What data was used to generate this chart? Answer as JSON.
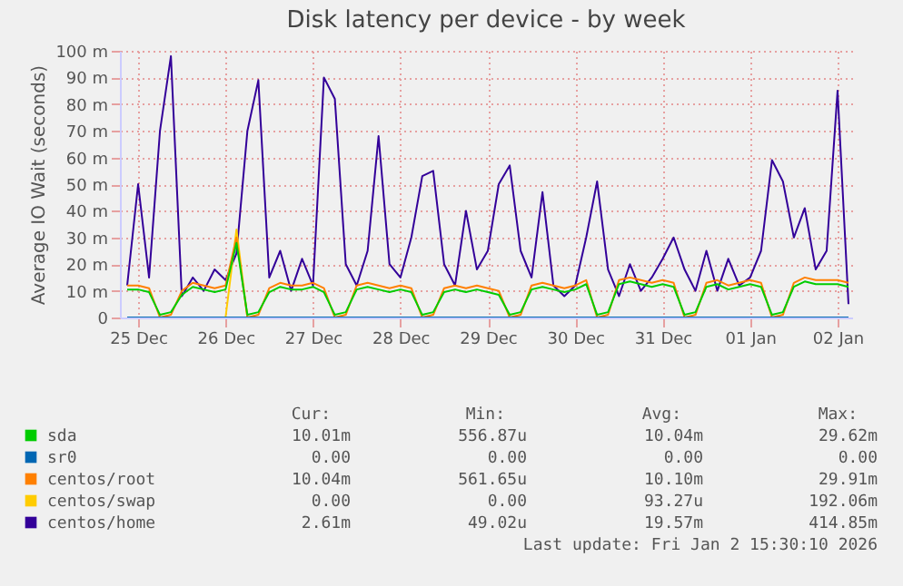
{
  "chart_data": {
    "type": "line",
    "title": "Disk latency per device - by week",
    "ylabel": "Average IO Wait (seconds)",
    "x": [
      "2025-12-25T09:00",
      "2025-12-25T12:00",
      "2025-12-25T15:00",
      "2025-12-25T18:00",
      "2025-12-25T21:00",
      "2025-12-26T00:00",
      "2025-12-26T03:00",
      "2025-12-26T06:00",
      "2025-12-26T09:00",
      "2025-12-26T12:00",
      "2025-12-26T15:00",
      "2025-12-26T18:00",
      "2025-12-26T21:00",
      "2025-12-27T00:00",
      "2025-12-27T03:00",
      "2025-12-27T06:00",
      "2025-12-27T09:00",
      "2025-12-27T12:00",
      "2025-12-27T15:00",
      "2025-12-27T18:00",
      "2025-12-27T21:00",
      "2025-12-28T00:00",
      "2025-12-28T03:00",
      "2025-12-28T06:00",
      "2025-12-28T09:00",
      "2025-12-28T12:00",
      "2025-12-28T15:00",
      "2025-12-28T18:00",
      "2025-12-28T21:00",
      "2025-12-29T00:00",
      "2025-12-29T03:00",
      "2025-12-29T06:00",
      "2025-12-29T09:00",
      "2025-12-29T12:00",
      "2025-12-29T15:00",
      "2025-12-29T18:00",
      "2025-12-29T21:00",
      "2025-12-30T00:00",
      "2025-12-30T03:00",
      "2025-12-30T06:00",
      "2025-12-30T09:00",
      "2025-12-30T12:00",
      "2025-12-30T15:00",
      "2025-12-30T18:00",
      "2025-12-30T21:00",
      "2025-12-31T00:00",
      "2025-12-31T03:00",
      "2025-12-31T06:00",
      "2025-12-31T09:00",
      "2025-12-31T12:00",
      "2025-12-31T15:00",
      "2025-12-31T18:00",
      "2025-12-31T21:00",
      "2026-01-01T00:00",
      "2026-01-01T03:00",
      "2026-01-01T06:00",
      "2026-01-01T09:00",
      "2026-01-01T12:00",
      "2026-01-01T15:00",
      "2026-01-01T18:00",
      "2026-01-01T21:00",
      "2026-01-02T00:00",
      "2026-01-02T03:00",
      "2026-01-02T06:00",
      "2026-01-02T09:00",
      "2026-01-02T12:00",
      "2026-01-02T15:00"
    ],
    "xlim": [
      "2025-12-25T07:00",
      "2026-01-02T16:00"
    ],
    "xticks": [
      {
        "value": "2025-12-25T12:00",
        "label": "25 Dec"
      },
      {
        "value": "2025-12-26T12:00",
        "label": "26 Dec"
      },
      {
        "value": "2025-12-27T12:00",
        "label": "27 Dec"
      },
      {
        "value": "2025-12-28T12:00",
        "label": "28 Dec"
      },
      {
        "value": "2025-12-29T12:00",
        "label": "29 Dec"
      },
      {
        "value": "2025-12-30T12:00",
        "label": "30 Dec"
      },
      {
        "value": "2025-12-31T12:00",
        "label": "31 Dec"
      },
      {
        "value": "2026-01-01T12:00",
        "label": "01 Jan"
      },
      {
        "value": "2026-01-02T12:00",
        "label": "02 Jan"
      }
    ],
    "ylim": [
      0,
      100
    ],
    "yticks": [
      0,
      {
        "value": 10,
        "label": "10 m"
      },
      {
        "value": 20,
        "label": "20 m"
      },
      {
        "value": 30,
        "label": "30 m"
      },
      {
        "value": 40,
        "label": "40 m"
      },
      {
        "value": 50,
        "label": "50 m"
      },
      {
        "value": 60,
        "label": "60 m"
      },
      {
        "value": 70,
        "label": "70 m"
      },
      {
        "value": 80,
        "label": "80 m"
      },
      {
        "value": 90,
        "label": "90 m"
      },
      {
        "value": 100,
        "label": "100 m"
      }
    ],
    "grid": true,
    "legend": "bottom",
    "series": [
      {
        "name": "sda",
        "color": "#00cc00",
        "values": [
          10.5,
          10.5,
          9.5,
          1,
          2,
          8.5,
          11.5,
          10.5,
          9.5,
          10.5,
          28,
          1,
          2,
          9.5,
          11.5,
          10.5,
          10.5,
          11.5,
          9.5,
          1,
          2,
          10.5,
          11.5,
          10.5,
          9.5,
          10.5,
          9.5,
          1,
          2,
          9.5,
          10.5,
          9.5,
          10.5,
          9.5,
          8.5,
          1,
          2,
          10.5,
          11.5,
          10.5,
          9.5,
          10.5,
          12.5,
          1,
          2,
          12.5,
          13.5,
          12.5,
          11.5,
          12.5,
          11.5,
          1,
          2,
          11.5,
          12.5,
          10.5,
          11.5,
          12.5,
          11.5,
          1,
          2,
          11.5,
          13.5,
          12.5,
          12.5,
          12.5,
          11.5
        ]
      },
      {
        "name": "sr0",
        "color": "#0066b3",
        "values": [
          0,
          0,
          0,
          0,
          0,
          0,
          0,
          0,
          0,
          0,
          0,
          0,
          0,
          0,
          0,
          0,
          0,
          0,
          0,
          0,
          0,
          0,
          0,
          0,
          0,
          0,
          0,
          0,
          0,
          0,
          0,
          0,
          0,
          0,
          0,
          0,
          0,
          0,
          0,
          0,
          0,
          0,
          0,
          0,
          0,
          0,
          0,
          0,
          0,
          0,
          0,
          0,
          0,
          0,
          0,
          0,
          0,
          0,
          0,
          0,
          0,
          0,
          0,
          0,
          0,
          0,
          0
        ]
      },
      {
        "name": "centos/root",
        "color": "#ff8000",
        "values": [
          12,
          12,
          11,
          0,
          1,
          10,
          13,
          12,
          11,
          12,
          30,
          0,
          1,
          11,
          13,
          12,
          12,
          13,
          11,
          0,
          1,
          12,
          13,
          12,
          11,
          12,
          11,
          0,
          1,
          11,
          12,
          11,
          12,
          11,
          10,
          0,
          1,
          12,
          13,
          12,
          11,
          12,
          14,
          0,
          1,
          14,
          15,
          14,
          13,
          14,
          13,
          0,
          1,
          13,
          14,
          12,
          13,
          14,
          13,
          0,
          1,
          13,
          15,
          14,
          14,
          14,
          13
        ]
      },
      {
        "name": "centos/swap",
        "color": "#ffcc00",
        "values": [
          null,
          null,
          null,
          null,
          null,
          null,
          null,
          null,
          null,
          0,
          33,
          0,
          null,
          null,
          null,
          null,
          null,
          null,
          null,
          null,
          null,
          null,
          null,
          null,
          null,
          null,
          null,
          null,
          null,
          null,
          null,
          null,
          null,
          null,
          null,
          null,
          null,
          null,
          null,
          null,
          null,
          null,
          null,
          null,
          null,
          null,
          null,
          null,
          null,
          null,
          null,
          null,
          null,
          null,
          null,
          null,
          null,
          null,
          null,
          null,
          null,
          null,
          null,
          null,
          null,
          null,
          null
        ]
      },
      {
        "name": "centos/home",
        "color": "#330099",
        "values": [
          12,
          50,
          15,
          70,
          98,
          8,
          15,
          10,
          18,
          14,
          24,
          70,
          89,
          15,
          25,
          10,
          22,
          12,
          90,
          82,
          20,
          12,
          25,
          68,
          20,
          15,
          30,
          53,
          55,
          20,
          12,
          40,
          18,
          25,
          50,
          57,
          25,
          15,
          47,
          12,
          8,
          12,
          30,
          51,
          18,
          8,
          20,
          10,
          15,
          22,
          30,
          18,
          10,
          25,
          10,
          22,
          12,
          15,
          25,
          59,
          51,
          30,
          41,
          18,
          25,
          85,
          5
        ]
      }
    ],
    "annotations": [
      "Cur:",
      "Min:",
      "Avg:",
      "Max:",
      "10.01m",
      "556.87u",
      "10.04m",
      "29.62m",
      "0.00",
      "0.00",
      "0.00",
      "0.00",
      "10.04m",
      "561.65u",
      "10.10m",
      "29.91m",
      "0.00",
      "0.00",
      "93.27u",
      "192.06m",
      "2.61m",
      "49.02u",
      "19.57m",
      "414.85m",
      "Last update: Fri Jan  2 15:30:10 2026"
    ]
  }
}
